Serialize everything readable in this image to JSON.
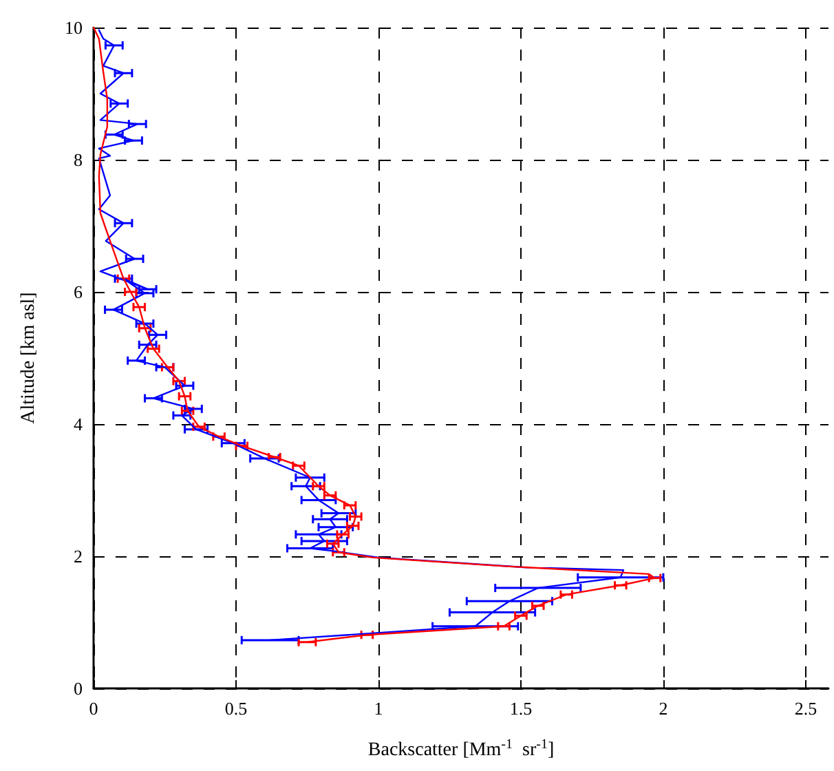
{
  "chart_data": {
    "type": "line",
    "xlabel": "Backscatter [Mm$^{-1}$  sr$^{-1}$]",
    "ylabel": "Altitude [km asl]",
    "xlim": [
      0,
      2.58
    ],
    "xticks": [
      0,
      0.5,
      1,
      1.5,
      2,
      2.5
    ],
    "ylim": [
      0,
      10
    ],
    "yticks": [
      0,
      2,
      4,
      6,
      8,
      10
    ],
    "grid": true,
    "series": [
      {
        "color": "#0000ff",
        "x": [
          0.62,
          1.34,
          1.4,
          1.46,
          1.56,
          1.85,
          1.86,
          1.52,
          1.0,
          0.84,
          0.76,
          0.81,
          0.79,
          0.85,
          0.83,
          0.86,
          0.79,
          0.745,
          0.76,
          0.6,
          0.49,
          0.36,
          0.31,
          0.35,
          0.21,
          0.32,
          0.25,
          0.15,
          0.19,
          0.225,
          0.18,
          0.07,
          0.18,
          0.105,
          0.19,
          0.024,
          0.144,
          0.043,
          0.105,
          0.019,
          0.058,
          0.019,
          0.058,
          0.019,
          0.14,
          0.072,
          0.154,
          0.024,
          0.09,
          0.024,
          0.058,
          0.105,
          0.034,
          0.072,
          0.034,
          0.019
        ],
        "values": [
          0.73,
          0.94,
          1.15,
          1.32,
          1.52,
          1.68,
          1.79,
          1.83,
          1.98,
          2.08,
          2.12,
          2.23,
          2.33,
          2.44,
          2.56,
          2.65,
          2.85,
          3.06,
          3.19,
          3.48,
          3.71,
          3.92,
          4.13,
          4.23,
          4.39,
          4.58,
          4.86,
          4.96,
          5.2,
          5.35,
          5.52,
          5.73,
          5.98,
          6.2,
          6.04,
          6.31,
          6.5,
          6.77,
          7.04,
          7.25,
          7.46,
          8.02,
          8.06,
          8.17,
          8.29,
          8.38,
          8.54,
          8.6,
          8.85,
          9.0,
          9.13,
          9.31,
          9.42,
          9.73,
          9.83,
          9.96
        ],
        "xerrors": [
          0.1,
          0.15,
          0.15,
          0.15,
          0.15,
          0.15,
          null,
          null,
          null,
          null,
          0.08,
          0.08,
          0.08,
          0.06,
          0.06,
          0.06,
          0.06,
          0.05,
          0.05,
          0.05,
          0.04,
          0.04,
          0.03,
          0.03,
          0.03,
          0.03,
          0.03,
          0.03,
          0.03,
          0.03,
          0.03,
          0.03,
          0.03,
          0.03,
          0.03,
          null,
          0.03,
          null,
          0.03,
          null,
          null,
          null,
          null,
          null,
          0.03,
          0.03,
          0.03,
          null,
          0.03,
          null,
          null,
          0.03,
          null,
          0.03,
          null,
          null
        ]
      },
      {
        "color": "#ff0000",
        "x": [
          0.75,
          0.96,
          1.44,
          1.5,
          1.56,
          1.66,
          1.85,
          1.97,
          1.95,
          1.44,
          0.98,
          0.86,
          0.84,
          0.875,
          0.91,
          0.92,
          0.9,
          0.83,
          0.79,
          0.72,
          0.635,
          0.52,
          0.44,
          0.37,
          0.33,
          0.32,
          0.3,
          0.26,
          0.21,
          0.18,
          0.16,
          0.13,
          0.105,
          0.058,
          0.024,
          0.019,
          0.024,
          0.048,
          0.048,
          0.034,
          0.019,
          0.0
        ],
        "values": [
          0.7,
          0.81,
          0.94,
          1.1,
          1.25,
          1.42,
          1.56,
          1.67,
          1.73,
          1.85,
          1.98,
          2.06,
          2.19,
          2.33,
          2.46,
          2.6,
          2.77,
          2.92,
          3.06,
          3.37,
          3.5,
          3.67,
          3.81,
          3.96,
          4.2,
          4.42,
          4.65,
          4.86,
          5.14,
          5.45,
          5.77,
          6.0,
          6.2,
          6.77,
          7.19,
          7.75,
          8.08,
          8.5,
          8.92,
          9.33,
          9.83,
          10
        ],
        "xerrors": [
          0.03,
          0.02,
          0.02,
          0.02,
          0.02,
          0.02,
          0.02,
          0.02,
          null,
          null,
          null,
          0.02,
          0.02,
          0.02,
          0.02,
          0.02,
          0.02,
          0.02,
          0.02,
          0.02,
          0.02,
          0.02,
          0.02,
          0.02,
          0.02,
          0.02,
          0.02,
          0.02,
          0.02,
          0.02,
          0.02,
          0.02,
          0.02,
          null,
          null,
          null,
          null,
          null,
          null,
          null,
          null,
          null
        ]
      }
    ]
  }
}
